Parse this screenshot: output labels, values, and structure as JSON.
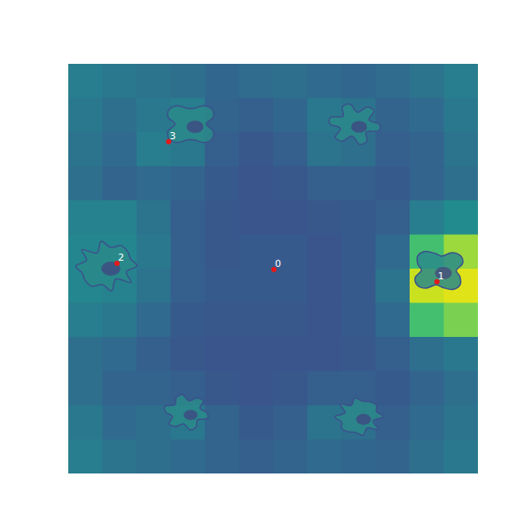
{
  "chart_data": {
    "type": "heatmap",
    "tick_labels": false,
    "xlim": [
      0,
      100
    ],
    "ylim": [
      0,
      100
    ],
    "zlim": [
      0,
      1
    ],
    "cells": [
      [
        0.42,
        0.4,
        0.38,
        0.36,
        0.33,
        0.35,
        0.36,
        0.34,
        0.33,
        0.35,
        0.38,
        0.42
      ],
      [
        0.4,
        0.36,
        0.4,
        0.42,
        0.32,
        0.3,
        0.33,
        0.4,
        0.38,
        0.32,
        0.34,
        0.4
      ],
      [
        0.38,
        0.34,
        0.42,
        0.4,
        0.3,
        0.27,
        0.3,
        0.38,
        0.36,
        0.3,
        0.32,
        0.38
      ],
      [
        0.36,
        0.32,
        0.34,
        0.32,
        0.28,
        0.26,
        0.27,
        0.3,
        0.3,
        0.28,
        0.32,
        0.36
      ],
      [
        0.44,
        0.44,
        0.38,
        0.3,
        0.27,
        0.26,
        0.26,
        0.27,
        0.28,
        0.3,
        0.42,
        0.48
      ],
      [
        0.46,
        0.46,
        0.4,
        0.3,
        0.27,
        0.28,
        0.28,
        0.26,
        0.28,
        0.34,
        0.7,
        0.85
      ],
      [
        0.46,
        0.44,
        0.38,
        0.3,
        0.28,
        0.28,
        0.28,
        0.26,
        0.28,
        0.38,
        0.92,
        0.95
      ],
      [
        0.42,
        0.4,
        0.34,
        0.28,
        0.27,
        0.27,
        0.27,
        0.26,
        0.28,
        0.34,
        0.7,
        0.8
      ],
      [
        0.36,
        0.34,
        0.3,
        0.27,
        0.26,
        0.26,
        0.26,
        0.26,
        0.27,
        0.3,
        0.36,
        0.4
      ],
      [
        0.36,
        0.32,
        0.32,
        0.3,
        0.27,
        0.26,
        0.27,
        0.3,
        0.3,
        0.28,
        0.32,
        0.36
      ],
      [
        0.4,
        0.34,
        0.36,
        0.4,
        0.32,
        0.28,
        0.3,
        0.38,
        0.36,
        0.3,
        0.34,
        0.38
      ],
      [
        0.42,
        0.38,
        0.36,
        0.34,
        0.32,
        0.3,
        0.32,
        0.34,
        0.33,
        0.32,
        0.36,
        0.4
      ]
    ],
    "points": {
      "x": [
        50.2,
        90.0,
        11.9,
        24.5
      ],
      "y": [
        49.8,
        46.8,
        51.3,
        81.0
      ],
      "labels": [
        "0",
        "1",
        "2",
        "3"
      ],
      "color": "#e31a1c",
      "marker": "circle"
    }
  }
}
